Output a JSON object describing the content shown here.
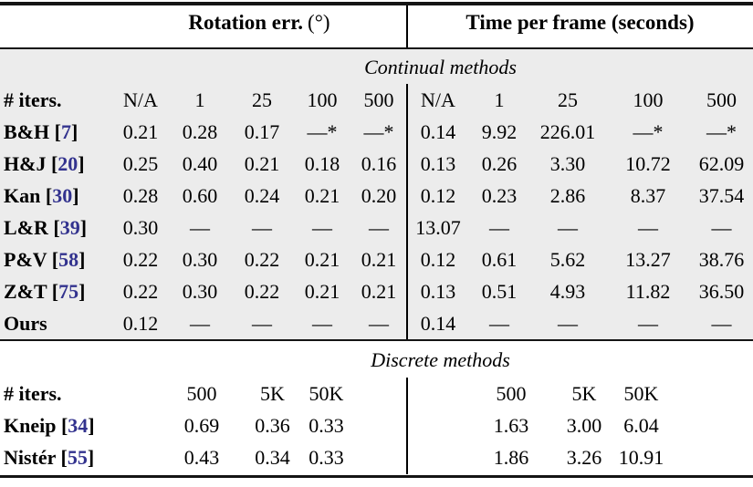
{
  "header": {
    "rotation_title": "Rotation err.",
    "rotation_unit": "(°)",
    "time_title": "Time per frame (seconds)"
  },
  "continual": {
    "band": "Continual methods",
    "iters_label": "# iters.",
    "iters_left": [
      "N/A",
      "1",
      "25",
      "100",
      "500"
    ],
    "iters_right": [
      "N/A",
      "1",
      "25",
      "100",
      "500"
    ],
    "rows": [
      {
        "method": "B&H",
        "cite": "7",
        "rot": [
          "0.21",
          "0.28",
          "0.17",
          "—*",
          "—*"
        ],
        "time": [
          "0.14",
          "9.92",
          "226.01",
          "—*",
          "—*"
        ]
      },
      {
        "method": "H&J",
        "cite": "20",
        "rot": [
          "0.25",
          "0.40",
          "0.21",
          "0.18",
          "0.16"
        ],
        "time": [
          "0.13",
          "0.26",
          "3.30",
          "10.72",
          "62.09"
        ]
      },
      {
        "method": "Kan",
        "cite": "30",
        "rot": [
          "0.28",
          "0.60",
          "0.24",
          "0.21",
          "0.20"
        ],
        "time": [
          "0.12",
          "0.23",
          "2.86",
          "8.37",
          "37.54"
        ]
      },
      {
        "method": "L&R",
        "cite": "39",
        "rot": [
          "0.30",
          "—",
          "—",
          "—",
          "—"
        ],
        "time": [
          "13.07",
          "—",
          "—",
          "—",
          "—"
        ]
      },
      {
        "method": "P&V",
        "cite": "58",
        "rot": [
          "0.22",
          "0.30",
          "0.22",
          "0.21",
          "0.21"
        ],
        "time": [
          "0.12",
          "0.61",
          "5.62",
          "13.27",
          "38.76"
        ]
      },
      {
        "method": "Z&T",
        "cite": "75",
        "rot": [
          "0.22",
          "0.30",
          "0.22",
          "0.21",
          "0.21"
        ],
        "time": [
          "0.13",
          "0.51",
          "4.93",
          "11.82",
          "36.50"
        ]
      },
      {
        "method": "Ours",
        "cite": null,
        "rot": [
          "0.12",
          "—",
          "—",
          "—",
          "—"
        ],
        "time": [
          "0.14",
          "—",
          "—",
          "—",
          "—"
        ]
      }
    ]
  },
  "discrete": {
    "band": "Discrete methods",
    "iters_label": "# iters.",
    "iters_left": [
      "500",
      "5K",
      "50K"
    ],
    "iters_right": [
      "500",
      "5K",
      "50K"
    ],
    "rows": [
      {
        "method": "Kneip",
        "cite": "34",
        "rot": [
          "0.69",
          "0.36",
          "0.33"
        ],
        "time": [
          "1.63",
          "3.00",
          "6.04"
        ]
      },
      {
        "method": "Nistér",
        "cite": "55",
        "rot": [
          "0.43",
          "0.34",
          "0.33"
        ],
        "time": [
          "1.86",
          "3.26",
          "10.91"
        ]
      }
    ]
  },
  "colors": {
    "citation": "#32328e",
    "section_bg": "#ececec"
  }
}
